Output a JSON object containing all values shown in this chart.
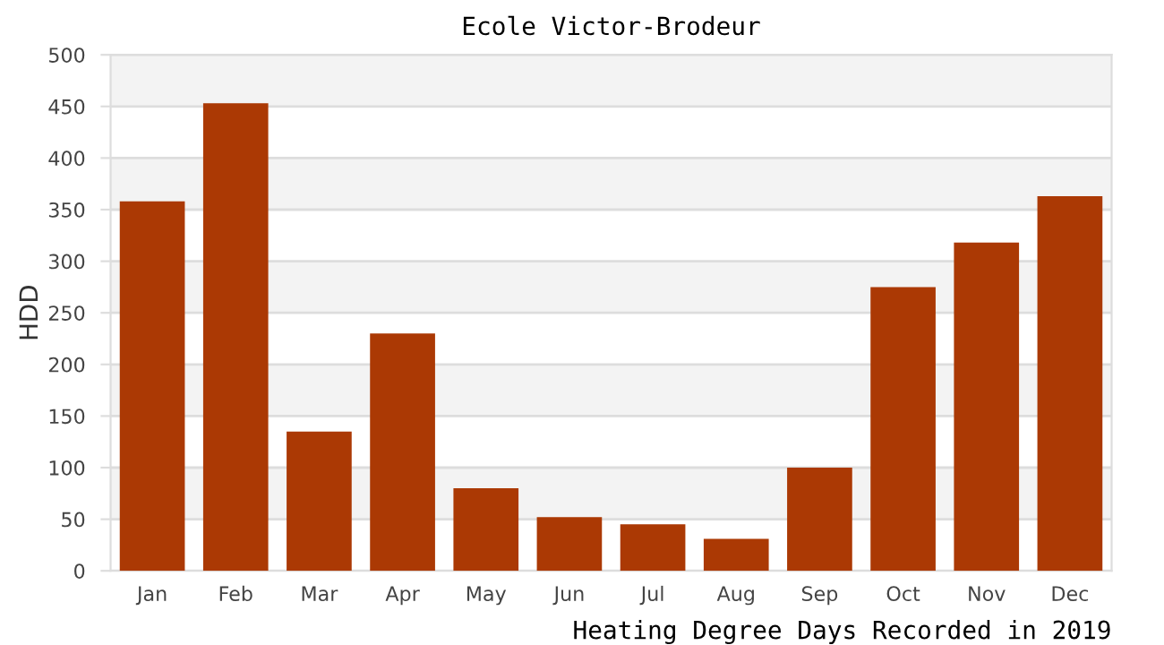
{
  "chart_data": {
    "type": "bar",
    "title": "Ecole Victor-Brodeur",
    "xlabel": "Heating Degree Days Recorded in 2019",
    "ylabel": "HDD",
    "categories": [
      "Jan",
      "Feb",
      "Mar",
      "Apr",
      "May",
      "Jun",
      "Jul",
      "Aug",
      "Sep",
      "Oct",
      "Nov",
      "Dec"
    ],
    "values": [
      358,
      453,
      135,
      230,
      80,
      52,
      45,
      31,
      100,
      275,
      318,
      363
    ],
    "color": "#ab3904",
    "ylim": [
      0,
      500
    ],
    "yticks": [
      0,
      50,
      100,
      150,
      200,
      250,
      300,
      350,
      400,
      450,
      500
    ],
    "grid": "y"
  }
}
